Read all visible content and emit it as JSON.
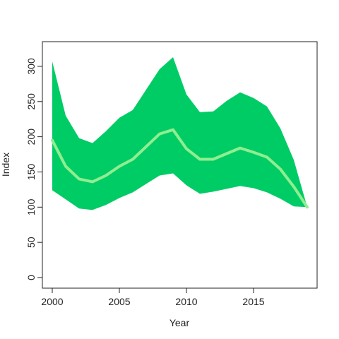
{
  "chart_data": {
    "type": "area",
    "title": "",
    "xlabel": "Year",
    "ylabel": "Index",
    "xlim": [
      2000,
      2019
    ],
    "ylim": [
      0,
      320
    ],
    "x_ticks": [
      "2000",
      "2005",
      "2010",
      "2015"
    ],
    "y_ticks": [
      "0",
      "50",
      "100",
      "150",
      "200",
      "250",
      "300"
    ],
    "grid": false,
    "legend": "none",
    "x": [
      2000,
      2001,
      2002,
      2003,
      2004,
      2005,
      2006,
      2007,
      2008,
      2009,
      2010,
      2011,
      2012,
      2013,
      2014,
      2015,
      2016,
      2017,
      2018,
      2019
    ],
    "series": [
      {
        "role": "upper",
        "color": "#00cc66",
        "values": [
          307,
          230,
          198,
          191,
          208,
          227,
          238,
          267,
          296,
          313,
          260,
          235,
          236,
          251,
          263,
          255,
          243,
          212,
          167,
          100
        ]
      },
      {
        "role": "lower",
        "color": "#00cc66",
        "values": [
          124,
          111,
          98,
          96,
          103,
          113,
          121,
          133,
          145,
          148,
          131,
          119,
          122,
          126,
          130,
          127,
          121,
          112,
          101,
          100
        ]
      },
      {
        "role": "mean",
        "color": "#90ee90",
        "values": [
          195,
          158,
          140,
          136,
          145,
          158,
          168,
          186,
          204,
          210,
          183,
          168,
          168,
          176,
          184,
          178,
          171,
          154,
          129,
          100
        ]
      }
    ]
  }
}
